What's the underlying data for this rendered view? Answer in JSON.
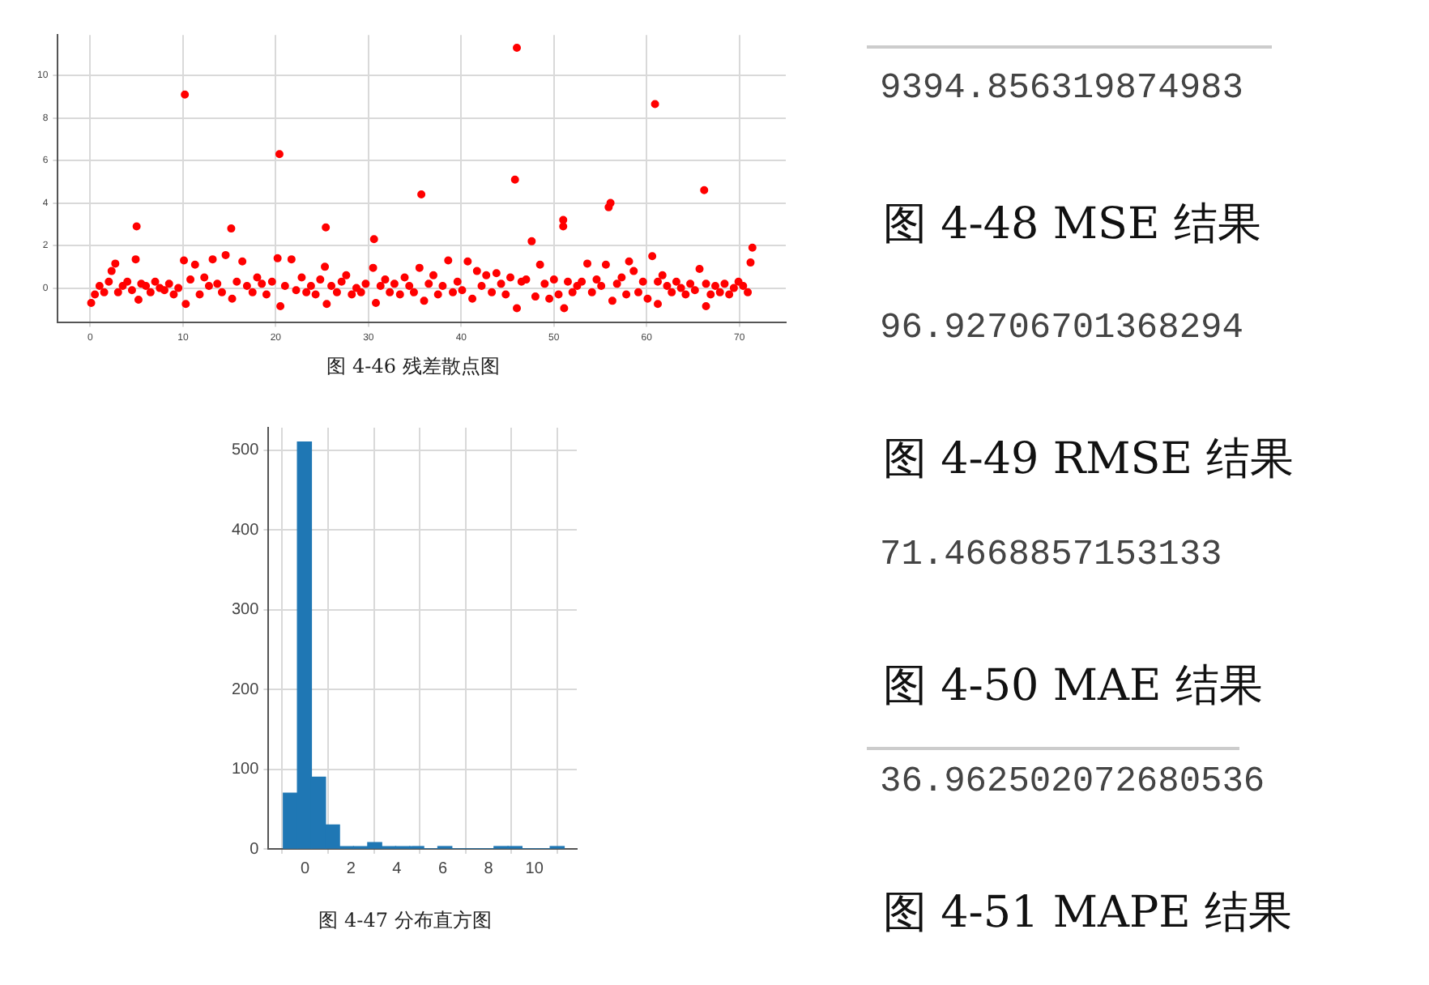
{
  "chart_data": [
    {
      "type": "scatter",
      "title": "图 4-46 残差散点图",
      "xlim": [
        -3.5,
        75
      ],
      "ylim": [
        -1.6,
        11.9
      ],
      "xticks": [
        0,
        10,
        20,
        30,
        40,
        50,
        60,
        70
      ],
      "yticks": [
        0,
        2,
        4,
        6,
        8,
        10
      ],
      "grid": true,
      "marker": "circle",
      "series": [
        {
          "color": "#ff0000",
          "x": [
            0.1,
            0.5,
            1,
            1.5,
            2,
            2.3,
            2.7,
            3,
            3.5,
            4,
            4.5,
            4.9,
            5,
            5.2,
            5.5,
            6,
            6.5,
            7,
            7.5,
            8,
            8.5,
            9,
            9.5,
            10.1,
            10.2,
            10.3,
            10.8,
            11.3,
            11.8,
            12.3,
            12.8,
            13.2,
            13.7,
            14.2,
            14.6,
            15.2,
            15.3,
            15.8,
            16.4,
            16.9,
            17.5,
            18,
            18.5,
            19,
            19.6,
            20.2,
            20.4,
            20.5,
            21,
            21.7,
            22.2,
            22.8,
            23.3,
            23.8,
            24.3,
            24.8,
            25.3,
            25.4,
            25.5,
            26,
            26.6,
            27.1,
            27.6,
            28.2,
            28.7,
            29.2,
            29.7,
            30.5,
            30.6,
            30.8,
            31.3,
            31.8,
            32.3,
            32.8,
            33.4,
            33.9,
            34.4,
            34.9,
            35.5,
            35.7,
            36,
            36.5,
            37,
            37.5,
            38,
            38.6,
            39.1,
            39.6,
            40.1,
            40.7,
            41.2,
            41.7,
            42.2,
            42.7,
            43.3,
            43.8,
            44.3,
            44.8,
            45.3,
            45.8,
            46,
            46,
            46.5,
            47,
            47.6,
            48,
            48.5,
            49,
            49.5,
            50,
            50.5,
            51,
            51,
            51.1,
            51.5,
            52,
            52.5,
            53,
            53.6,
            54.1,
            54.6,
            55.1,
            55.6,
            55.9,
            56.1,
            56.3,
            56.8,
            57.3,
            57.8,
            58.1,
            58.6,
            59.1,
            59.6,
            60.1,
            60.6,
            60.9,
            61.2,
            61.2,
            61.7,
            62.2,
            62.7,
            63.2,
            63.7,
            64.2,
            64.7,
            65.2,
            65.7,
            66.2,
            66.4,
            66.4,
            66.9,
            67.4,
            67.9,
            68.4,
            68.9,
            69.4,
            69.9,
            70.4,
            70.9,
            71.2,
            71.4
          ],
          "values": [
            -0.7,
            -0.3,
            0.1,
            -0.2,
            0.3,
            0.8,
            1.15,
            -0.2,
            0.1,
            0.3,
            -0.1,
            1.35,
            2.9,
            -0.55,
            0.2,
            0.1,
            -0.2,
            0.3,
            0,
            -0.1,
            0.2,
            -0.3,
            0,
            1.3,
            9.1,
            -0.75,
            0.4,
            1.1,
            -0.3,
            0.5,
            0.1,
            1.35,
            0.2,
            -0.2,
            1.55,
            2.8,
            -0.5,
            0.3,
            1.25,
            0.1,
            -0.2,
            0.5,
            0.2,
            -0.3,
            0.3,
            1.4,
            6.3,
            -0.85,
            0.1,
            1.35,
            -0.1,
            0.5,
            -0.2,
            0.1,
            -0.3,
            0.4,
            1,
            2.85,
            -0.75,
            0.1,
            -0.2,
            0.3,
            0.6,
            -0.3,
            0,
            -0.2,
            0.2,
            0.95,
            2.3,
            -0.7,
            0.1,
            0.4,
            -0.2,
            0.2,
            -0.3,
            0.5,
            0.1,
            -0.2,
            0.95,
            4.4,
            -0.6,
            0.2,
            0.6,
            -0.3,
            0.1,
            1.3,
            -0.2,
            0.3,
            -0.1,
            1.25,
            -0.5,
            0.8,
            0.1,
            0.6,
            -0.2,
            0.7,
            0.2,
            -0.3,
            0.5,
            5.1,
            11.3,
            -0.95,
            0.3,
            0.4,
            2.2,
            -0.4,
            1.1,
            0.2,
            -0.5,
            0.4,
            -0.3,
            3.2,
            2.9,
            -0.95,
            0.3,
            -0.2,
            0.1,
            0.3,
            1.15,
            -0.2,
            0.4,
            0.1,
            1.1,
            3.8,
            4,
            -0.6,
            0.2,
            0.5,
            -0.3,
            1.25,
            0.8,
            -0.2,
            0.3,
            -0.5,
            1.5,
            8.65,
            -0.75,
            0.3,
            0.6,
            0.1,
            -0.2,
            0.3,
            0,
            -0.3,
            0.2,
            -0.1,
            0.9,
            4.6,
            -0.85,
            0.2,
            -0.3,
            0.1,
            -0.2,
            0.2,
            -0.3,
            0,
            0.3,
            0.1,
            -0.2,
            1.2,
            1.9
          ]
        }
      ]
    },
    {
      "type": "histogram",
      "title": "图 4-47 分布直方图",
      "xlim": [
        -1.6,
        11.85
      ],
      "ylim": [
        0,
        528
      ],
      "xticks": [
        0,
        2,
        4,
        6,
        8,
        10
      ],
      "yticks": [
        0,
        100,
        200,
        300,
        400,
        500
      ],
      "grid": true,
      "color": "#1f77b4",
      "bins": [
        -0.95,
        -0.34,
        0.28,
        0.89,
        1.5,
        2.11,
        2.73,
        3.34,
        3.95,
        4.56,
        5.18,
        5.79,
        6.4,
        7.01,
        7.63,
        8.24,
        8.85,
        9.46,
        10.08,
        10.69,
        11.3
      ],
      "values": [
        70,
        510,
        90,
        30,
        3,
        3,
        8,
        3,
        3,
        3,
        0,
        3,
        0,
        0,
        0,
        3,
        3,
        0,
        0,
        3
      ]
    },
    {
      "type": "other",
      "annotations": [
        "9394.856319874983",
        "图 4-48 MSE 结果",
        "96.92706701368294",
        "图 4-49 RMSE 结果",
        "71.4668857153133",
        "图 4-50 MAE 结果",
        "36.962502072680536",
        "图 4-51 MAPE 结果"
      ]
    }
  ]
}
